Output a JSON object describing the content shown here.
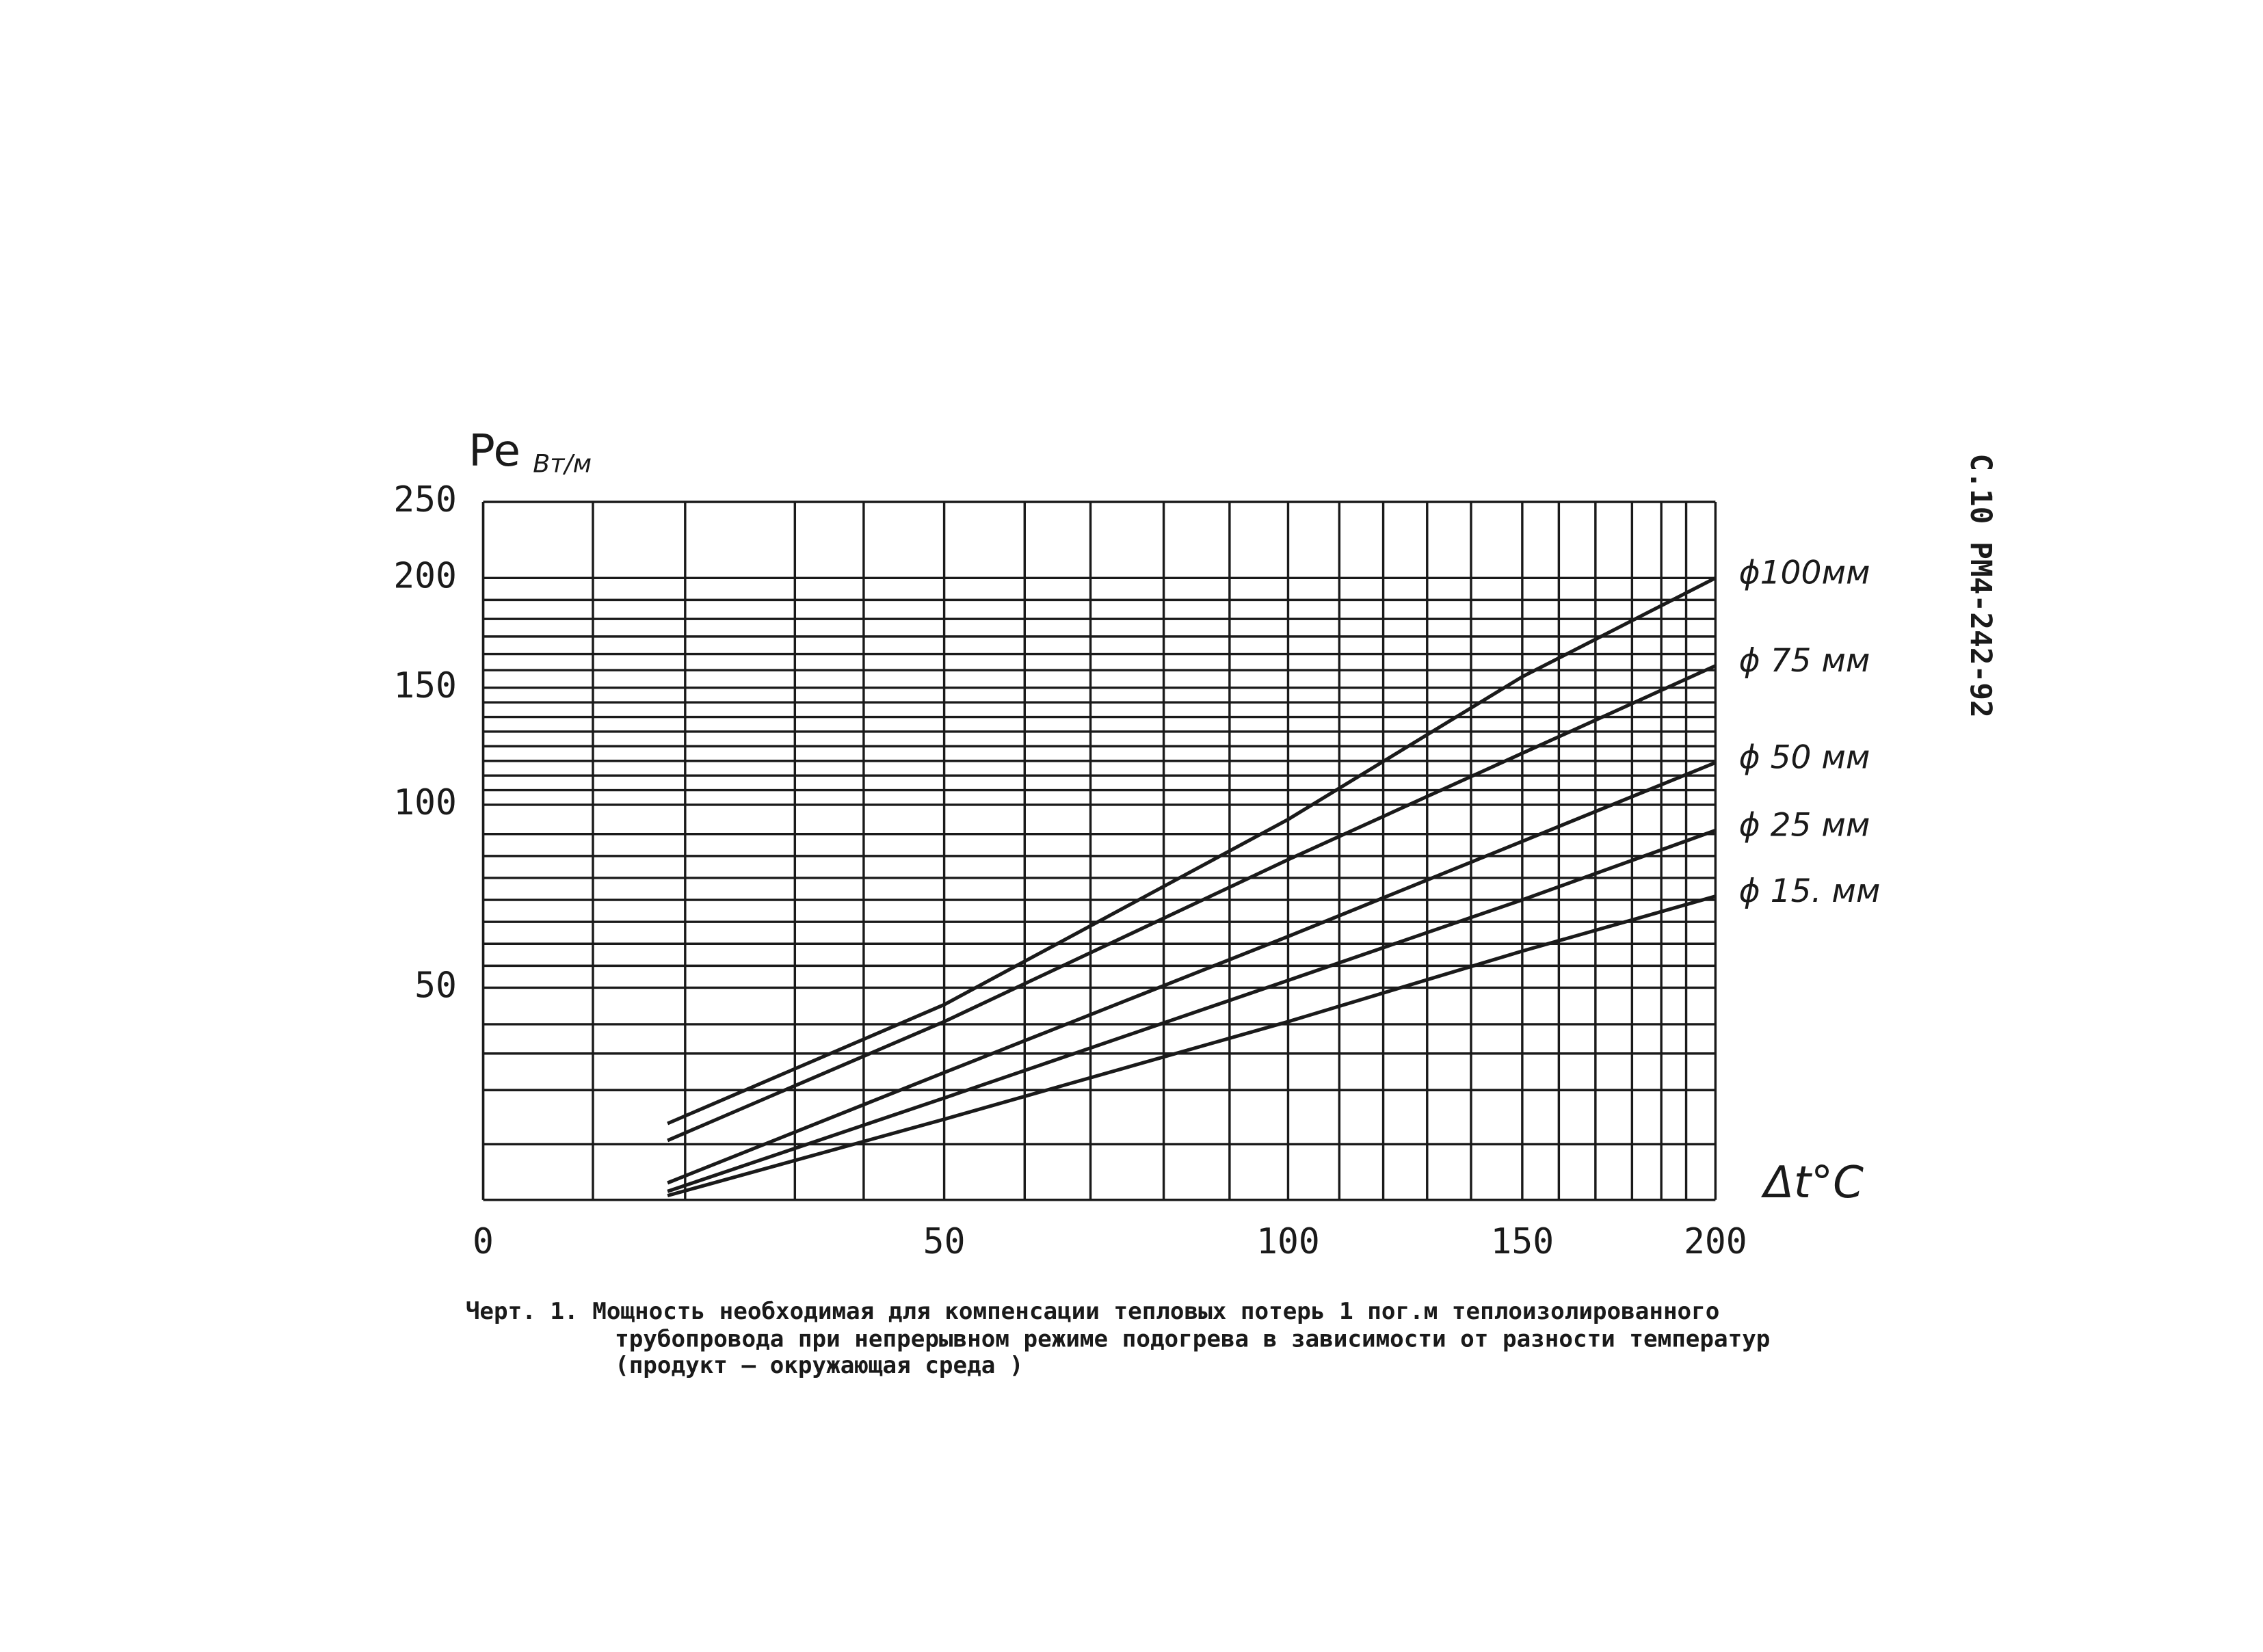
{
  "chart_data": {
    "type": "line",
    "y_label": "Pe",
    "y_unit": "Вт/м",
    "x_label": "Δt°C",
    "x": [
      20,
      50,
      100,
      150,
      200
    ],
    "xlim": [
      0,
      200
    ],
    "xticks": [
      0,
      50,
      100,
      150,
      200
    ],
    "ylim": [
      25,
      250
    ],
    "yticks": [
      50,
      100,
      150,
      200,
      250
    ],
    "color": "#1a1a1a",
    "series": [
      {
        "name": "ϕ100мм",
        "values": [
          34,
          48,
          96,
          155,
          200
        ]
      },
      {
        "name": "ϕ 75 мм",
        "values": [
          32,
          46,
          85,
          122,
          160
        ]
      },
      {
        "name": "ϕ 50 мм",
        "values": [
          27,
          40,
          64,
          90,
          118
        ]
      },
      {
        "name": "ϕ 25 мм",
        "values": [
          26,
          37,
          52,
          74,
          93
        ]
      },
      {
        "name": "ϕ 15. мм",
        "values": [
          25.5,
          34.5,
          46,
          60,
          75
        ]
      }
    ],
    "caption": [
      "Черт. 1. Мощность   необходимая для компенсации тепловых потерь 1 пог.м теплоизолированного",
      "трубопровода при непрерывном режиме подогрева в зависимости от разности температур",
      "(продукт – окружающая среда )"
    ]
  },
  "page_label": "С.10  РМ4-242-92"
}
